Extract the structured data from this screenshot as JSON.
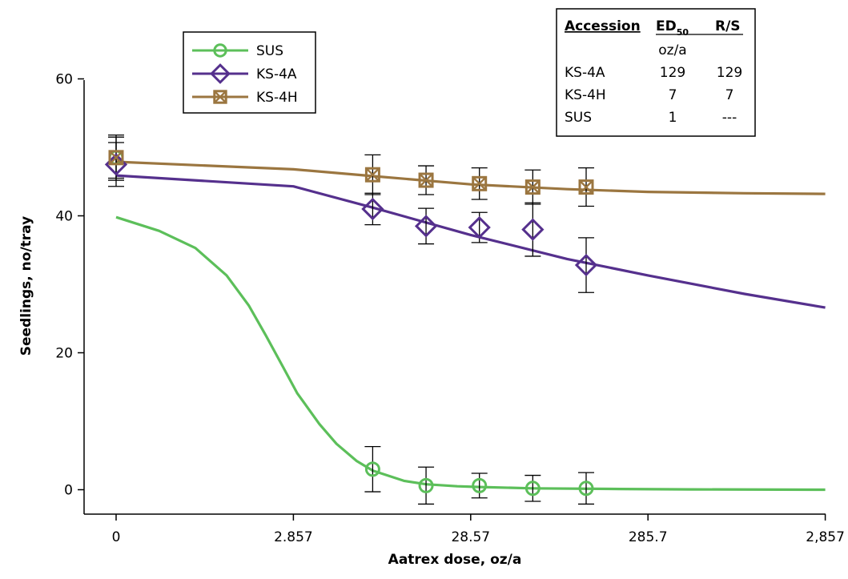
{
  "chart_data": {
    "type": "line",
    "title": "",
    "xlabel": "Aatrex dose, oz/a",
    "ylabel": "Seedlings, no/tray",
    "x_scale": "log",
    "x_ticks": [
      0,
      2.857,
      28.57,
      285.7,
      2857
    ],
    "x_tick_labels": [
      "0",
      "2.857",
      "28.57",
      "285.7",
      "2,857"
    ],
    "y_ticks": [
      0,
      20,
      40,
      60
    ],
    "y_tick_labels": [
      "0",
      "20",
      "40",
      "60"
    ],
    "ylim": [
      -3,
      60
    ],
    "grid": false,
    "legend_position": "top-left",
    "legend": [
      "SUS",
      "KS-4A",
      "KS-4H"
    ],
    "series": [
      {
        "name": "SUS",
        "color": "#5cbf5a",
        "marker": "circle",
        "points": [
          {
            "x": 0,
            "y": 48.5,
            "err": 3.0
          },
          {
            "x": 8,
            "y": 3.0,
            "err": 3.3
          },
          {
            "x": 16,
            "y": 0.6,
            "err": 2.7
          },
          {
            "x": 32,
            "y": 0.6,
            "err": 1.8
          },
          {
            "x": 64,
            "y": 0.2,
            "err": 1.9
          },
          {
            "x": 128,
            "y": 0.2,
            "err": 2.3
          }
        ],
        "fit_curve": [
          [
            0,
            39.8
          ],
          [
            0.5,
            37.8
          ],
          [
            0.8,
            35.3
          ],
          [
            1.2,
            31.3
          ],
          [
            1.6,
            26.9
          ],
          [
            2.0,
            22.5
          ],
          [
            2.5,
            17.9
          ],
          [
            3.0,
            14.1
          ],
          [
            4.0,
            9.6
          ],
          [
            5.0,
            6.7
          ],
          [
            6.5,
            4.2
          ],
          [
            8.0,
            2.8
          ],
          [
            12.0,
            1.3
          ],
          [
            16.0,
            0.8
          ],
          [
            24.0,
            0.5
          ],
          [
            32.0,
            0.4
          ],
          [
            64.0,
            0.2
          ],
          [
            200.0,
            0.1
          ],
          [
            500.0,
            0.05
          ],
          [
            2857,
            0
          ]
        ]
      },
      {
        "name": "KS-4A",
        "color": "#55308d",
        "marker": "diamond",
        "points": [
          {
            "x": 0,
            "y": 47.5,
            "err": 3.2
          },
          {
            "x": 8,
            "y": 41.0,
            "err": 2.3
          },
          {
            "x": 16,
            "y": 38.5,
            "err": 2.6
          },
          {
            "x": 32,
            "y": 38.3,
            "err": 2.2
          },
          {
            "x": 64,
            "y": 38.0,
            "err": 3.9
          },
          {
            "x": 128,
            "y": 32.8,
            "err": 4.0
          }
        ],
        "fit_curve": [
          [
            0,
            45.9
          ],
          [
            2.857,
            44.3
          ],
          [
            8.0,
            41.2
          ],
          [
            28.57,
            37.2
          ],
          [
            100.0,
            33.7
          ],
          [
            285.7,
            31.3
          ],
          [
            1000.0,
            28.6
          ],
          [
            2857,
            26.6
          ]
        ]
      },
      {
        "name": "KS-4H",
        "color": "#9b7640",
        "marker": "square-x",
        "points": [
          {
            "x": 0,
            "y": 48.5,
            "err": 3.3
          },
          {
            "x": 8,
            "y": 46.0,
            "err": 2.9
          },
          {
            "x": 16,
            "y": 45.2,
            "err": 2.1
          },
          {
            "x": 32,
            "y": 44.7,
            "err": 2.3
          },
          {
            "x": 64,
            "y": 44.2,
            "err": 2.5
          },
          {
            "x": 128,
            "y": 44.2,
            "err": 2.8
          }
        ],
        "fit_curve": [
          [
            0,
            47.9
          ],
          [
            2.857,
            46.8
          ],
          [
            8.0,
            45.8
          ],
          [
            28.57,
            44.6
          ],
          [
            100.0,
            43.9
          ],
          [
            285.7,
            43.5
          ],
          [
            1000.0,
            43.3
          ],
          [
            2857,
            43.2
          ]
        ]
      }
    ],
    "table": {
      "headers": [
        "Accession",
        "ED",
        "R/S"
      ],
      "ed_subscript": "50",
      "ed_unit": "oz/a",
      "rows": [
        [
          "KS-4A",
          "129",
          "129"
        ],
        [
          "KS-4H",
          "7",
          "7"
        ],
        [
          "SUS",
          "1",
          "---"
        ]
      ]
    }
  }
}
